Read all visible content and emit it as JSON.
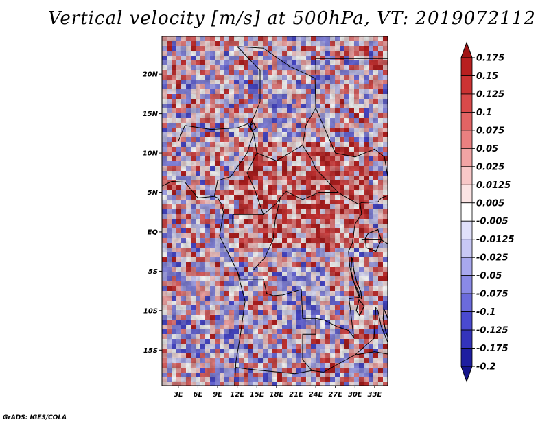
{
  "title": "Vertical velocity [m/s] at 500hPa, VT: 2019072112",
  "credit": "GrADS: IGES/COLA",
  "map": {
    "lat_ticks": [
      "20N",
      "15N",
      "10N",
      "5N",
      "EQ",
      "5S",
      "10S",
      "15S"
    ],
    "lat_values": [
      20,
      15,
      10,
      5,
      0,
      -5,
      -10,
      -15
    ],
    "lon_ticks": [
      "3E",
      "6E",
      "9E",
      "12E",
      "15E",
      "18E",
      "21E",
      "24E",
      "27E",
      "30E",
      "33E"
    ],
    "lon_values": [
      3,
      6,
      9,
      12,
      15,
      18,
      21,
      24,
      27,
      30,
      33
    ],
    "lon_range": [
      0.5,
      35
    ],
    "lat_range": [
      -19.5,
      24.8
    ]
  },
  "colorbar": {
    "labels": [
      "0.175",
      "0.15",
      "0.125",
      "0.1",
      "0.075",
      "0.05",
      "0.025",
      "0.0125",
      "0.005",
      "-0.005",
      "-0.0125",
      "-0.025",
      "-0.05",
      "-0.075",
      "-0.1",
      "-0.125",
      "-0.175",
      "-0.2"
    ],
    "colors": [
      "#a01414",
      "#b82020",
      "#cc3333",
      "#d94a4a",
      "#e26464",
      "#ea8080",
      "#f2a4a4",
      "#f8c8c8",
      "#fbe4e4",
      "#ffffff",
      "#e0e0fa",
      "#c8c8f5",
      "#a8a8ee",
      "#8a8ae6",
      "#6b6bdc",
      "#4a4ad0",
      "#3333bb",
      "#1e1ea0",
      "#14148c"
    ]
  }
}
